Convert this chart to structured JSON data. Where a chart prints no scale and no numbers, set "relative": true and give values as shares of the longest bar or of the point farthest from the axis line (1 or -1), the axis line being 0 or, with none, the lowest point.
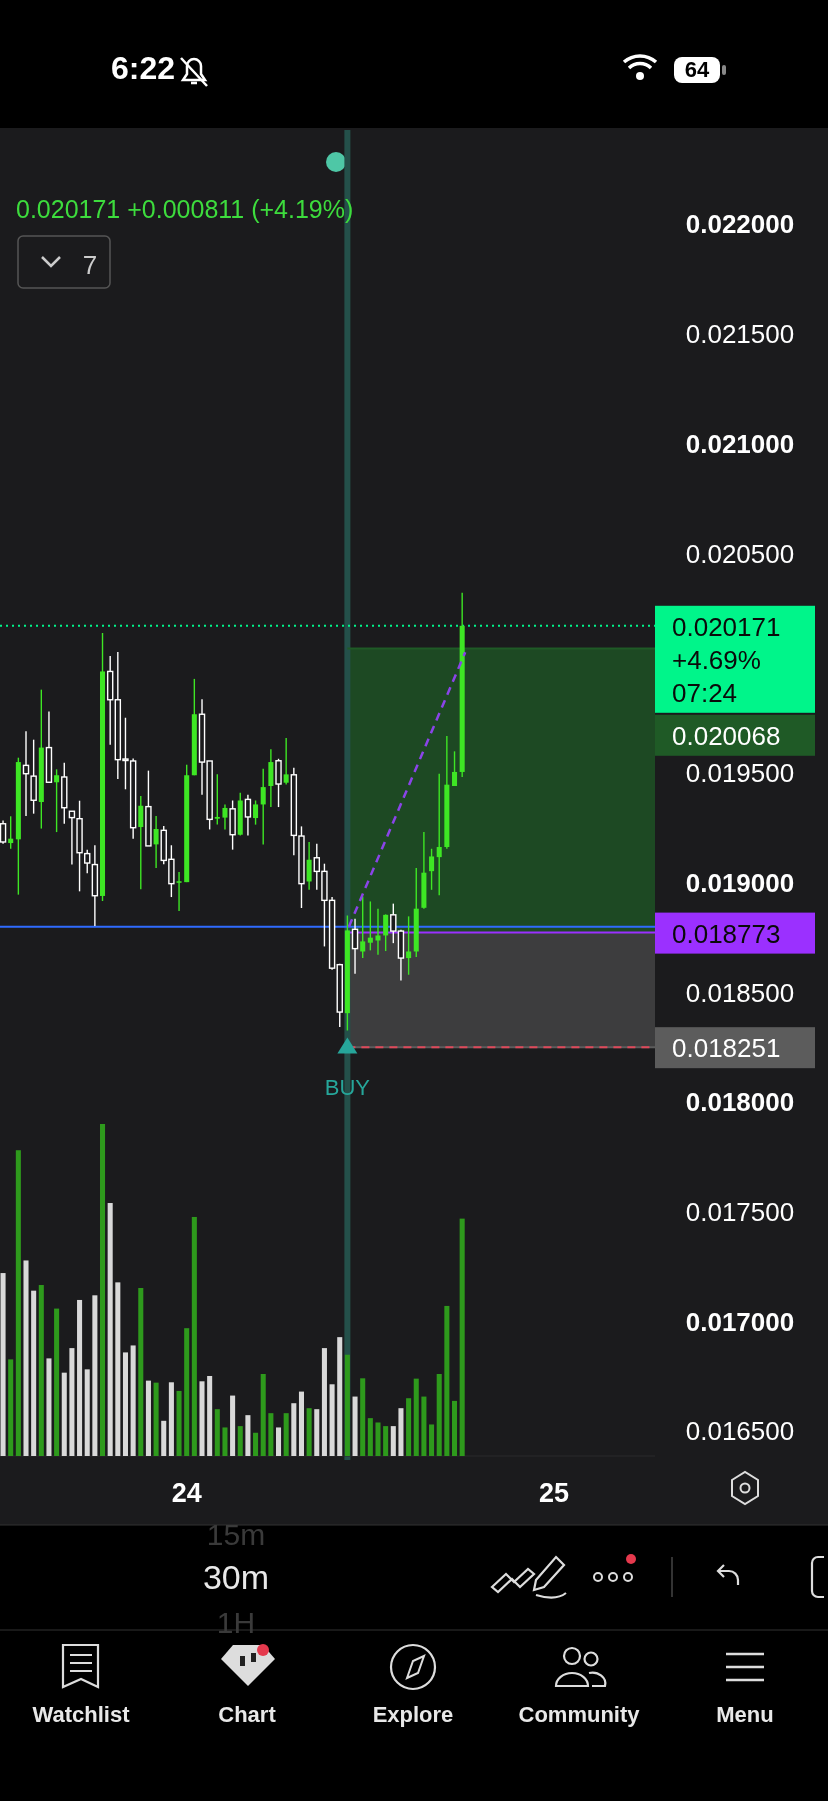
{
  "chart_data": [
    {
      "type": "candlestick",
      "subtitle": "0.020171  +0.000811 (+4.19%)",
      "xticks": [
        24,
        25
      ],
      "x": [
        23.5,
        23.5208,
        23.5417,
        23.5625,
        23.5833,
        23.6042,
        23.625,
        23.6458,
        23.6667,
        23.6875,
        23.7083,
        23.7292,
        23.75,
        23.7708,
        23.7917,
        23.8125,
        23.8333,
        23.8542,
        23.875,
        23.8958,
        23.9167,
        23.9375,
        23.9583,
        23.9792,
        24,
        24.0208,
        24.0417,
        24.0625,
        24.0833,
        24.1042,
        24.125,
        24.1458,
        24.1667,
        24.1875,
        24.2083,
        24.2292,
        24.25,
        24.2708,
        24.2917,
        24.3125,
        24.3333,
        24.3542,
        24.375,
        24.3958,
        24.4167,
        24.4375,
        24.4583,
        24.4792,
        24.5,
        24.5208,
        24.5417,
        24.5625,
        24.5833,
        24.6042,
        24.625,
        24.6458,
        24.6667,
        24.6875,
        24.7083,
        24.7292,
        24.75
      ],
      "ohlc": [
        [
          0.019269,
          0.019284,
          0.019178,
          0.019186
        ],
        [
          0.019181,
          0.019303,
          0.019155,
          0.019201
        ],
        [
          0.019198,
          0.01957,
          0.018946,
          0.01955
        ],
        [
          0.019535,
          0.01969,
          0.019304,
          0.019497
        ],
        [
          0.019486,
          0.019652,
          0.019315,
          0.019376
        ],
        [
          0.019368,
          0.01988,
          0.019247,
          0.019616
        ],
        [
          0.019616,
          0.019781,
          0.019455,
          0.019458
        ],
        [
          0.019458,
          0.019517,
          0.019231,
          0.01949
        ],
        [
          0.019482,
          0.019547,
          0.019269,
          0.019342
        ],
        [
          0.019326,
          0.019326,
          0.019083,
          0.019297
        ],
        [
          0.019292,
          0.019374,
          0.018961,
          0.019137
        ],
        [
          0.019133,
          0.019151,
          0.019044,
          0.01909
        ],
        [
          0.019083,
          0.019171,
          0.018803,
          0.018941
        ],
        [
          0.01894,
          0.020138,
          0.018917,
          0.019963
        ],
        [
          0.019963,
          0.020033,
          0.019629,
          0.019834
        ],
        [
          0.019834,
          0.020052,
          0.019473,
          0.019561
        ],
        [
          0.019564,
          0.019752,
          0.019426,
          0.019558
        ],
        [
          0.019555,
          0.019566,
          0.019201,
          0.019251
        ],
        [
          0.019254,
          0.019395,
          0.01897,
          0.019351
        ],
        [
          0.019347,
          0.019511,
          0.019168,
          0.019168
        ],
        [
          0.019175,
          0.019304,
          0.019067,
          0.019245
        ],
        [
          0.019239,
          0.019259,
          0.019084,
          0.019102
        ],
        [
          0.019107,
          0.019171,
          0.018935,
          0.018996
        ],
        [
          0.019,
          0.019049,
          0.018871,
          0.019007
        ],
        [
          0.019003,
          0.019538,
          0.019003,
          0.01949
        ],
        [
          0.01949,
          0.019929,
          0.01949,
          0.019768
        ],
        [
          0.019768,
          0.019836,
          0.019401,
          0.01955
        ],
        [
          0.019555,
          0.019555,
          0.019243,
          0.019289
        ],
        [
          0.019292,
          0.019494,
          0.019266,
          0.0193
        ],
        [
          0.019297,
          0.019357,
          0.019243,
          0.019341
        ],
        [
          0.019337,
          0.019375,
          0.019151,
          0.019219
        ],
        [
          0.019219,
          0.01941,
          0.019216,
          0.019375
        ],
        [
          0.01938,
          0.019401,
          0.019216,
          0.0193
        ],
        [
          0.019295,
          0.019375,
          0.019265,
          0.019357
        ],
        [
          0.019357,
          0.01952,
          0.019175,
          0.019436
        ],
        [
          0.019441,
          0.019608,
          0.019345,
          0.01955
        ],
        [
          0.019556,
          0.019565,
          0.019345,
          0.01945
        ],
        [
          0.019456,
          0.01966,
          0.019448,
          0.019494
        ],
        [
          0.019492,
          0.019524,
          0.019125,
          0.019216
        ],
        [
          0.019213,
          0.019257,
          0.018885,
          0.018996
        ],
        [
          0.019006,
          0.019186,
          0.018968,
          0.019105
        ],
        [
          0.019114,
          0.019178,
          0.018968,
          0.019052
        ],
        [
          0.019052,
          0.019087,
          0.01871,
          0.01892
        ],
        [
          0.01892,
          0.018935,
          0.018604,
          0.018611
        ],
        [
          0.018627,
          0.018631,
          0.018343,
          0.018411
        ],
        [
          0.018406,
          0.018851,
          0.018327,
          0.018783
        ],
        [
          0.018788,
          0.018836,
          0.018586,
          0.0187
        ],
        [
          0.018687,
          0.018938,
          0.018657,
          0.018733
        ],
        [
          0.018727,
          0.018915,
          0.018692,
          0.01875
        ],
        [
          0.018737,
          0.018882,
          0.018672,
          0.01876
        ],
        [
          0.01876,
          0.018856,
          0.018689,
          0.018854
        ],
        [
          0.018854,
          0.018905,
          0.018725,
          0.01878
        ],
        [
          0.01878,
          0.018786,
          0.018555,
          0.018657
        ],
        [
          0.018657,
          0.018847,
          0.018581,
          0.018687
        ],
        [
          0.018687,
          0.019067,
          0.018662,
          0.018882
        ],
        [
          0.018886,
          0.019231,
          0.018882,
          0.019046
        ],
        [
          0.019053,
          0.019155,
          0.018968,
          0.01912
        ],
        [
          0.019117,
          0.019497,
          0.018943,
          0.019163
        ],
        [
          0.019163,
          0.019669,
          0.019155,
          0.019447
        ],
        [
          0.019441,
          0.019599,
          0.019441,
          0.019505
        ],
        [
          0.019505,
          0.020322,
          0.019482,
          0.020171
        ]
      ],
      "colors": [
        "#ffffff",
        "#3ee624",
        "#3ee624",
        "#ffffff",
        "#ffffff",
        "#3ee624",
        "#ffffff",
        "#3ee624",
        "#ffffff",
        "#ffffff",
        "#ffffff",
        "#ffffff",
        "#ffffff",
        "#3ee624",
        "#ffffff",
        "#ffffff",
        "#ffffff",
        "#ffffff",
        "#3ee624",
        "#ffffff",
        "#3ee624",
        "#ffffff",
        "#ffffff",
        "#3ee624",
        "#3ee624",
        "#3ee624",
        "#ffffff",
        "#ffffff",
        "#3ee624",
        "#3ee624",
        "#ffffff",
        "#3ee624",
        "#ffffff",
        "#3ee624",
        "#3ee624",
        "#3ee624",
        "#ffffff",
        "#3ee624",
        "#ffffff",
        "#ffffff",
        "#3ee624",
        "#ffffff",
        "#ffffff",
        "#ffffff",
        "#ffffff",
        "#3ee624",
        "#ffffff",
        "#3ee624",
        "#3ee624",
        "#3ee624",
        "#3ee624",
        "#ffffff",
        "#ffffff",
        "#3ee624",
        "#3ee624",
        "#3ee624",
        "#3ee624",
        "#3ee624",
        "#3ee624",
        "#3ee624",
        "#3ee624"
      ],
      "xlim": [
        23.4917,
        25.275
      ],
      "ylim": [
        0.01637,
        0.02243
      ],
      "yticks": [
        {
          "value": 0.0165,
          "label": "0.016500"
        },
        {
          "value": 0.017,
          "label": "0.017000"
        },
        {
          "value": 0.0175,
          "label": "0.017500"
        },
        {
          "value": 0.018,
          "label": "0.018000"
        },
        {
          "value": 0.0185,
          "label": "0.018500"
        },
        {
          "value": 0.019,
          "label": "0.019000"
        },
        {
          "value": 0.0195,
          "label": "0.019500"
        },
        {
          "value": 0.0205,
          "label": "0.020500"
        },
        {
          "value": 0.021,
          "label": "0.021000"
        },
        {
          "value": 0.0215,
          "label": "0.021500"
        },
        {
          "value": 0.022,
          "label": "0.022000"
        }
      ],
      "series": [
        {
          "type": "line",
          "x": [
            24.4417,
            24.7583
          ],
          "values": [
            0.0188,
            0.02005
          ],
          "color": "#8a44e8",
          "line_style": "dashed"
        }
      ],
      "ref_lines": [
        {
          "axis": "x",
          "value": 24.4375,
          "color": "#24504a"
        },
        {
          "axis": "y",
          "value": 0.0188,
          "color": "#2f6bff"
        },
        {
          "axis": "y",
          "value": 0.020171,
          "label": "0.020171 +4.69% 07:24",
          "color": "#00f58a",
          "line_style": "dotted"
        },
        {
          "axis": "y",
          "value": 0.020068,
          "label": "0.020068",
          "color": "#1f5a26"
        },
        {
          "axis": "y",
          "value": 0.018773,
          "label": "0.018773",
          "color": "#9b30ff"
        },
        {
          "axis": "y",
          "value": 0.018251,
          "label": "0.018251",
          "color": "#5c5c5c"
        },
        {
          "axis": "y",
          "value": 0.018251,
          "color": "#e0485a",
          "line_style": "dashed"
        }
      ],
      "bands": [
        {
          "axis": "y",
          "from": 0.018773,
          "to": 0.020068,
          "color": "#1f5a26"
        },
        {
          "axis": "y",
          "from": 0.018251,
          "to": 0.018773,
          "color": "#4a4a4a"
        }
      ],
      "annotations": [
        {
          "text": "BUY",
          "x": 24.4375,
          "y": 0.01825
        },
        "6:22",
        "64",
        "7",
        "15m",
        "30m",
        "1H",
        "Watchlist",
        "Chart",
        "Explore",
        "Community",
        "Menu"
      ]
    },
    {
      "type": "bar",
      "relative": true,
      "categories": [
        null,
        null,
        null,
        null,
        null,
        null,
        null,
        null,
        null,
        null,
        null,
        null,
        null,
        null,
        null,
        null,
        null,
        null,
        null,
        null,
        null,
        null,
        null,
        null,
        null,
        null,
        null,
        null,
        null,
        null,
        null,
        null,
        null,
        null,
        null,
        null,
        null,
        null,
        null,
        null,
        null,
        null,
        null,
        null,
        null,
        null,
        null,
        null,
        null,
        null,
        null,
        null,
        null,
        null,
        null,
        null,
        null,
        null,
        null,
        null,
        null
      ],
      "values": [
        0.551,
        0.291,
        0.921,
        0.589,
        0.498,
        0.515,
        0.294,
        0.444,
        0.251,
        0.325,
        0.47,
        0.261,
        0.484,
        1,
        0.762,
        0.523,
        0.312,
        0.333,
        0.506,
        0.227,
        0.221,
        0.106,
        0.222,
        0.196,
        0.385,
        0.72,
        0.225,
        0.241,
        0.141,
        0.086,
        0.182,
        0.09,
        0.123,
        0.07,
        0.247,
        0.129,
        0.086,
        0.129,
        0.159,
        0.194,
        0.144,
        0.141,
        0.325,
        0.216,
        0.358,
        0.305,
        0.179,
        0.234,
        0.114,
        0.101,
        0.09,
        0.09,
        0.144,
        0.174,
        0.233,
        0.179,
        0.095,
        0.247,
        0.452,
        0.166,
        0.715
      ],
      "colors": [
        "#d9d9d9",
        "#2e9a1c",
        "#2e9a1c",
        "#d9d9d9",
        "#d9d9d9",
        "#2e9a1c",
        "#d9d9d9",
        "#2e9a1c",
        "#d9d9d9",
        "#d9d9d9",
        "#d9d9d9",
        "#d9d9d9",
        "#d9d9d9",
        "#2e9a1c",
        "#d9d9d9",
        "#d9d9d9",
        "#d9d9d9",
        "#d9d9d9",
        "#2e9a1c",
        "#d9d9d9",
        "#2e9a1c",
        "#d9d9d9",
        "#d9d9d9",
        "#2e9a1c",
        "#2e9a1c",
        "#2e9a1c",
        "#d9d9d9",
        "#d9d9d9",
        "#2e9a1c",
        "#2e9a1c",
        "#d9d9d9",
        "#2e9a1c",
        "#d9d9d9",
        "#2e9a1c",
        "#2e9a1c",
        "#2e9a1c",
        "#d9d9d9",
        "#2e9a1c",
        "#d9d9d9",
        "#d9d9d9",
        "#2e9a1c",
        "#d9d9d9",
        "#d9d9d9",
        "#d9d9d9",
        "#d9d9d9",
        "#2e9a1c",
        "#d9d9d9",
        "#2e9a1c",
        "#2e9a1c",
        "#2e9a1c",
        "#2e9a1c",
        "#d9d9d9",
        "#d9d9d9",
        "#2e9a1c",
        "#2e9a1c",
        "#2e9a1c",
        "#2e9a1c",
        "#2e9a1c",
        "#2e9a1c",
        "#2e9a1c",
        "#2e9a1c"
      ]
    }
  ]
}
